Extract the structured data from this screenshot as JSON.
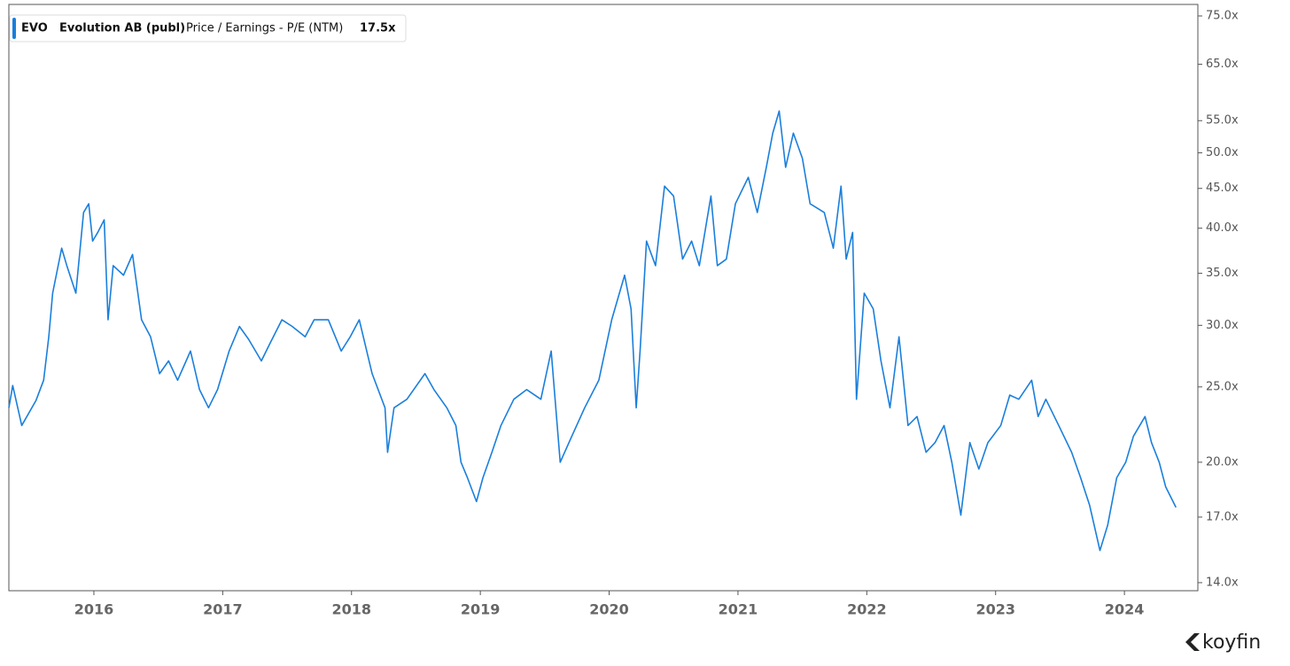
{
  "chart_data": {
    "type": "line",
    "legend": {
      "ticker": "EVO",
      "last_value": "17.5x"
    },
    "logo": "koyfin",
    "log_scale": true,
    "grid": false,
    "series": [
      {
        "name": "Evolution AB (publ)",
        "metric": "Price / Earnings - P/E (NTM)",
        "color": "#1a7fdc",
        "x": [
          2015.34,
          2015.37,
          2015.44,
          2015.55,
          2015.61,
          2015.65,
          2015.68,
          2015.75,
          2015.79,
          2015.86,
          2015.92,
          2015.96,
          2015.99,
          2016.03,
          2016.08,
          2016.11,
          2016.15,
          2016.23,
          2016.3,
          2016.37,
          2016.44,
          2016.51,
          2016.58,
          2016.65,
          2016.75,
          2016.82,
          2016.89,
          2016.96,
          2017.05,
          2017.13,
          2017.2,
          2017.3,
          2017.37,
          2017.46,
          2017.54,
          2017.64,
          2017.71,
          2017.82,
          2017.92,
          2017.99,
          2018.06,
          2018.16,
          2018.26,
          2018.28,
          2018.33,
          2018.43,
          2018.57,
          2018.64,
          2018.74,
          2018.81,
          2018.85,
          2018.9,
          2018.97,
          2019.02,
          2019.09,
          2019.16,
          2019.26,
          2019.36,
          2019.47,
          2019.55,
          2019.62,
          2019.71,
          2019.81,
          2019.92,
          2020.02,
          2020.12,
          2020.17,
          2020.21,
          2020.24,
          2020.29,
          2020.36,
          2020.43,
          2020.5,
          2020.57,
          2020.64,
          2020.7,
          2020.79,
          2020.84,
          2020.91,
          2020.98,
          2021.08,
          2021.15,
          2021.22,
          2021.27,
          2021.32,
          2021.37,
          2021.43,
          2021.5,
          2021.56,
          2021.67,
          2021.74,
          2021.8,
          2021.84,
          2021.89,
          2021.92,
          2021.98,
          2022.05,
          2022.11,
          2022.18,
          2022.25,
          2022.32,
          2022.39,
          2022.46,
          2022.53,
          2022.6,
          2022.66,
          2022.73,
          2022.8,
          2022.87,
          2022.94,
          2023.04,
          2023.11,
          2023.18,
          2023.28,
          2023.33,
          2023.39,
          2023.49,
          2023.59,
          2023.66,
          2023.73,
          2023.81,
          2023.87,
          2023.94,
          2024.01,
          2024.07,
          2024.16,
          2024.21,
          2024.27,
          2024.32,
          2024.4
        ],
        "values": [
          23.5,
          25.1,
          22.3,
          24,
          25.5,
          29,
          33,
          37.7,
          35.8,
          33,
          41.9,
          43,
          38.5,
          39.5,
          41,
          30.5,
          35.8,
          34.8,
          37,
          30.5,
          29,
          26,
          27,
          25.5,
          27.8,
          24.8,
          23.5,
          24.8,
          27.8,
          29.9,
          28.8,
          27,
          28.5,
          30.5,
          29.9,
          29,
          30.5,
          30.5,
          27.8,
          29,
          30.5,
          26,
          23.5,
          20.6,
          23.5,
          24.1,
          26,
          24.8,
          23.5,
          22.3,
          20,
          19.1,
          17.8,
          19.1,
          20.6,
          22.3,
          24.1,
          24.8,
          24.1,
          27.8,
          20,
          21.6,
          23.5,
          25.5,
          30.5,
          34.8,
          31.5,
          23.5,
          27.8,
          38.5,
          35.8,
          45.3,
          44,
          36.5,
          38.5,
          35.8,
          44,
          35.8,
          36.5,
          43,
          46.5,
          41.9,
          47.9,
          53,
          56.6,
          47.9,
          53,
          49.2,
          43,
          41.9,
          37.7,
          45.3,
          36.5,
          39.5,
          24.1,
          33,
          31.5,
          27,
          23.5,
          29,
          22.3,
          22.9,
          20.6,
          21.2,
          22.3,
          20,
          17.1,
          21.2,
          19.6,
          21.2,
          22.3,
          24.4,
          24.1,
          25.5,
          22.9,
          24.1,
          22.3,
          20.6,
          19.1,
          17.6,
          15.4,
          16.6,
          19.1,
          20,
          21.6,
          22.9,
          21.2,
          20,
          18.6,
          17.5
        ]
      }
    ],
    "xlim": [
      2015.34,
      2024.57
    ],
    "xticks": [
      2016,
      2017,
      2018,
      2019,
      2020,
      2021,
      2022,
      2023,
      2024
    ],
    "ylim": [
      13.67,
      77.6
    ],
    "yticks": [
      {
        "value": 75,
        "label": "75.0x"
      },
      {
        "value": 65,
        "label": "65.0x"
      },
      {
        "value": 55,
        "label": "55.0x"
      },
      {
        "value": 50,
        "label": "50.0x"
      },
      {
        "value": 45,
        "label": "45.0x"
      },
      {
        "value": 40,
        "label": "40.0x"
      },
      {
        "value": 35,
        "label": "35.0x"
      },
      {
        "value": 30,
        "label": "30.0x"
      },
      {
        "value": 25,
        "label": "25.0x"
      },
      {
        "value": 20,
        "label": "20.0x"
      },
      {
        "value": 17,
        "label": "17.0x"
      },
      {
        "value": 14,
        "label": "14.0x"
      }
    ]
  }
}
